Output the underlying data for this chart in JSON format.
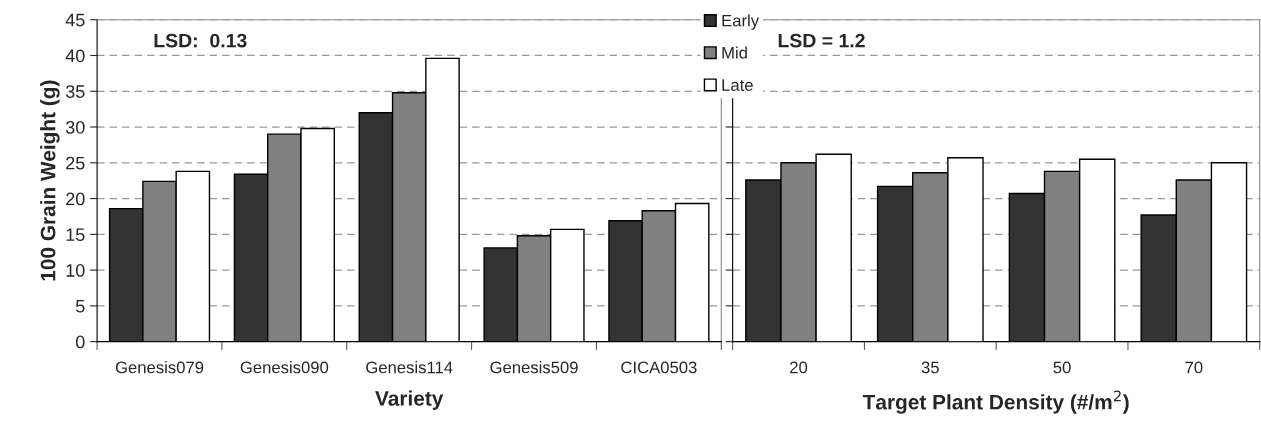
{
  "chart_data": [
    {
      "type": "bar",
      "xlabel": "Variety",
      "ylabel": "100 Grain Weight (g)",
      "categories": [
        "Genesis079",
        "Genesis090",
        "Genesis114",
        "Genesis509",
        "CICA0503"
      ],
      "series": [
        {
          "name": "Early",
          "color": "#333333",
          "values": [
            18.6,
            23.4,
            32.0,
            13.1,
            16.9
          ]
        },
        {
          "name": "Mid",
          "color": "#808080",
          "values": [
            22.4,
            29.0,
            34.8,
            14.8,
            18.3
          ]
        },
        {
          "name": "Late",
          "color": "#ffffff",
          "values": [
            23.8,
            29.8,
            39.6,
            15.7,
            19.3
          ]
        }
      ],
      "ylim": [
        0,
        45
      ],
      "yticks": [
        0,
        5,
        10,
        15,
        20,
        25,
        30,
        35,
        40,
        45
      ],
      "grid": "y",
      "legend": "top right",
      "annotations": [
        "LSD:  0.13"
      ]
    },
    {
      "type": "bar",
      "xlabel": "Target Plant Density (#/m$^{2}$)",
      "categories": [
        "20",
        "35",
        "50",
        "70"
      ],
      "series": [
        {
          "color": "#333333",
          "values": [
            22.6,
            21.7,
            20.7,
            17.7
          ]
        },
        {
          "color": "#808080",
          "values": [
            25.0,
            23.6,
            23.8,
            22.6
          ]
        },
        {
          "color": "#ffffff",
          "values": [
            26.2,
            25.7,
            25.5,
            25.0
          ]
        }
      ],
      "ylim": [
        0,
        45
      ],
      "yticks": [
        {
          "value": 0,
          "label": null
        },
        {
          "value": 5,
          "label": null
        },
        {
          "value": 10,
          "label": null
        },
        {
          "value": 15,
          "label": null
        },
        {
          "value": 20,
          "label": null
        },
        {
          "value": 25,
          "label": null
        },
        {
          "value": 30,
          "label": null
        },
        {
          "value": 35,
          "label": null
        },
        {
          "value": 40,
          "label": null
        },
        {
          "value": 45,
          "label": null
        }
      ],
      "grid": "y",
      "tick_labels": "x",
      "annotations": [
        "LSD = 1.2"
      ]
    }
  ]
}
